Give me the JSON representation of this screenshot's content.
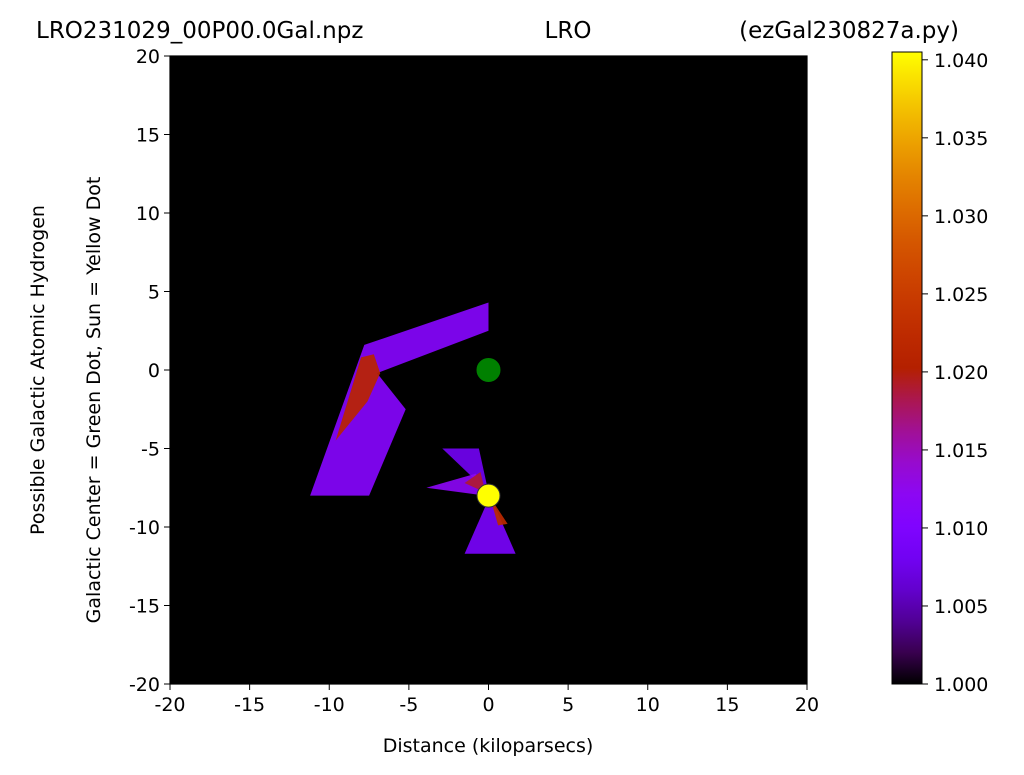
{
  "chart_data": {
    "type": "heatmap",
    "title_left": "LRO231029_00P00.0Gal.npz",
    "title_center": "LRO",
    "title_right": "(ezGal230827a.py)",
    "xlabel": "Distance (kiloparsecs)",
    "ylabel_line1": "Possible Galactic Atomic Hydrogen",
    "ylabel_line2": "Galactic Center = Green Dot, Sun = Yellow Dot",
    "xlim": [
      -20,
      20
    ],
    "ylim": [
      -20,
      20
    ],
    "xticks": [
      -20,
      -15,
      -10,
      -5,
      0,
      5,
      10,
      15,
      20
    ],
    "yticks": [
      -20,
      -15,
      -10,
      -5,
      0,
      5,
      10,
      15,
      20
    ],
    "xtick_labels": [
      "-20",
      "-15",
      "-10",
      "-5",
      "0",
      "5",
      "10",
      "15",
      "20"
    ],
    "ytick_labels": [
      "-20",
      "-15",
      "-10",
      "-5",
      "0",
      "5",
      "10",
      "15",
      "20"
    ],
    "background_color": "#000000",
    "colormap": "gnuplot",
    "colorbar": {
      "min": 1.0,
      "max": 1.0405,
      "ticks": [
        1.0,
        1.005,
        1.01,
        1.015,
        1.02,
        1.025,
        1.03,
        1.035,
        1.04
      ],
      "tick_labels": [
        "1.000",
        "1.005",
        "1.010",
        "1.015",
        "1.020",
        "1.025",
        "1.030",
        "1.035",
        "1.040"
      ]
    },
    "markers": [
      {
        "name": "Galactic Center",
        "x": 0,
        "y": 0,
        "color": "#008000"
      },
      {
        "name": "Sun",
        "x": 0,
        "y": -8,
        "color": "#ffff00"
      }
    ],
    "regions": [
      {
        "points": [
          [
            -7.8,
            1.6
          ],
          [
            0,
            4.3
          ],
          [
            0,
            2.5
          ],
          [
            -7.0,
            -0.2
          ],
          [
            -5.2,
            -2.5
          ],
          [
            -7.5,
            -8.0
          ],
          [
            -11.2,
            -8.0
          ]
        ],
        "value": 1.011
      },
      {
        "points": [
          [
            -8.0,
            0.8
          ],
          [
            -7.2,
            1.0
          ],
          [
            -6.8,
            -0.2
          ],
          [
            -7.6,
            -2.0
          ],
          [
            -9.6,
            -4.5
          ]
        ],
        "value": 1.021
      },
      {
        "points": [
          [
            -2.9,
            -5.0
          ],
          [
            0.0,
            -7.8
          ],
          [
            -0.6,
            -5.0
          ]
        ],
        "value": 1.008
      },
      {
        "points": [
          [
            -3.9,
            -7.5
          ],
          [
            -0.2,
            -8.0
          ],
          [
            -0.8,
            -6.6
          ]
        ],
        "value": 1.012
      },
      {
        "points": [
          [
            -1.5,
            -7.2
          ],
          [
            -0.2,
            -7.8
          ],
          [
            -0.5,
            -6.5
          ]
        ],
        "value": 1.019
      },
      {
        "points": [
          [
            0.1,
            -8.0
          ],
          [
            -1.5,
            -11.7
          ],
          [
            1.7,
            -11.7
          ]
        ],
        "value": 1.009
      },
      {
        "points": [
          [
            0.1,
            -8.1
          ],
          [
            0.6,
            -9.9
          ],
          [
            1.2,
            -9.8
          ]
        ],
        "value": 1.022
      }
    ]
  }
}
